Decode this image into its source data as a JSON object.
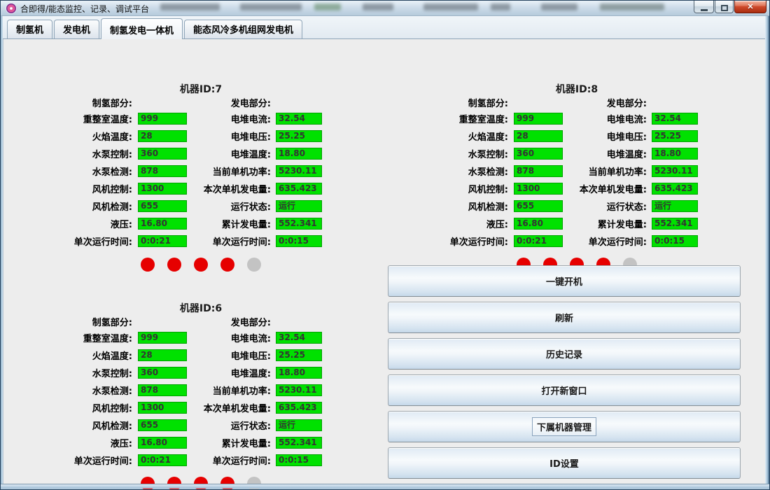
{
  "window": {
    "title": "合即得/能态监控、记录、调试平台",
    "app_icon": "flower-logo-icon",
    "controls": [
      {
        "name": "minimize",
        "glyph": "minimize-bar-icon"
      },
      {
        "name": "maximize",
        "glyph": "maximize-square-icon"
      },
      {
        "name": "close",
        "glyph": "✕"
      }
    ]
  },
  "tabs": [
    {
      "label": "制氢机",
      "active": false
    },
    {
      "label": "发电机",
      "active": false
    },
    {
      "label": "制氢发电一体机",
      "active": true
    },
    {
      "label": "能态风冷多机组网发电机",
      "active": false
    }
  ],
  "machines": [
    {
      "title": "机器ID:7",
      "hydrogen": {
        "header": "制氢部分:",
        "rows": [
          {
            "label": "重整室温度:",
            "value": "999"
          },
          {
            "label": "火焰温度:",
            "value": "28"
          },
          {
            "label": "水泵控制:",
            "value": "360"
          },
          {
            "label": "水泵检测:",
            "value": "878"
          },
          {
            "label": "风机控制:",
            "value": "1300"
          },
          {
            "label": "风机检测:",
            "value": "655"
          },
          {
            "label": "液压:",
            "value": "16.80"
          },
          {
            "label": "单次运行时间:",
            "value": "0:0:21"
          }
        ]
      },
      "power": {
        "header": "发电部分:",
        "rows": [
          {
            "label": "电堆电流:",
            "value": "32.54"
          },
          {
            "label": "电堆电压:",
            "value": "25.25"
          },
          {
            "label": "电堆温度:",
            "value": "18.80"
          },
          {
            "label": "当前单机功率:",
            "value": "5230.11"
          },
          {
            "label": "本次单机发电量:",
            "value": "635.423"
          },
          {
            "label": "运行状态:",
            "value": "运行"
          },
          {
            "label": "累计发电量:",
            "value": "552.341"
          },
          {
            "label": "单次运行时间:",
            "value": "0:0:15"
          }
        ]
      },
      "indicators": [
        "on",
        "on",
        "on",
        "on",
        "off"
      ]
    },
    {
      "title": "机器ID:8",
      "hydrogen": {
        "header": "制氢部分:",
        "rows": [
          {
            "label": "重整室温度:",
            "value": "999"
          },
          {
            "label": "火焰温度:",
            "value": "28"
          },
          {
            "label": "水泵控制:",
            "value": "360"
          },
          {
            "label": "水泵检测:",
            "value": "878"
          },
          {
            "label": "风机控制:",
            "value": "1300"
          },
          {
            "label": "风机检测:",
            "value": "655"
          },
          {
            "label": "液压:",
            "value": "16.80"
          },
          {
            "label": "单次运行时间:",
            "value": "0:0:21"
          }
        ]
      },
      "power": {
        "header": "发电部分:",
        "rows": [
          {
            "label": "电堆电流:",
            "value": "32.54"
          },
          {
            "label": "电堆电压:",
            "value": "25.25"
          },
          {
            "label": "电堆温度:",
            "value": "18.80"
          },
          {
            "label": "当前单机功率:",
            "value": "5230.11"
          },
          {
            "label": "本次单机发电量:",
            "value": "635.423"
          },
          {
            "label": "运行状态:",
            "value": "运行"
          },
          {
            "label": "累计发电量:",
            "value": "552.341"
          },
          {
            "label": "单次运行时间:",
            "value": "0:0:15"
          }
        ]
      },
      "indicators": [
        "on",
        "on",
        "on",
        "on",
        "off"
      ]
    },
    {
      "title": "机器ID:6",
      "hydrogen": {
        "header": "制氢部分:",
        "rows": [
          {
            "label": "重整室温度:",
            "value": "999"
          },
          {
            "label": "火焰温度:",
            "value": "28"
          },
          {
            "label": "水泵控制:",
            "value": "360"
          },
          {
            "label": "水泵检测:",
            "value": "878"
          },
          {
            "label": "风机控制:",
            "value": "1300"
          },
          {
            "label": "风机检测:",
            "value": "655"
          },
          {
            "label": "液压:",
            "value": "16.80"
          },
          {
            "label": "单次运行时间:",
            "value": "0:0:21"
          }
        ]
      },
      "power": {
        "header": "发电部分:",
        "rows": [
          {
            "label": "电堆电流:",
            "value": "32.54"
          },
          {
            "label": "电堆电压:",
            "value": "25.25"
          },
          {
            "label": "电堆温度:",
            "value": "18.80"
          },
          {
            "label": "当前单机功率:",
            "value": "5230.11"
          },
          {
            "label": "本次单机发电量:",
            "value": "635.423"
          },
          {
            "label": "运行状态:",
            "value": "运行"
          },
          {
            "label": "累计发电量:",
            "value": "552.341"
          },
          {
            "label": "单次运行时间:",
            "value": "0:0:15"
          }
        ]
      },
      "indicators": [
        "on",
        "on",
        "on",
        "on",
        "off"
      ]
    }
  ],
  "buttons": [
    {
      "label": "一键开机",
      "focused": false
    },
    {
      "label": "刷新",
      "focused": false
    },
    {
      "label": "历史记录",
      "focused": false
    },
    {
      "label": "打开新窗口",
      "focused": false
    },
    {
      "label": "下属机器管理",
      "focused": true
    },
    {
      "label": "ID设置",
      "focused": false
    }
  ],
  "colors": {
    "field_bg": "#00e100",
    "field_border": "#00a300",
    "indicator_on": "#e60000",
    "indicator_off": "#c3c3c3"
  }
}
